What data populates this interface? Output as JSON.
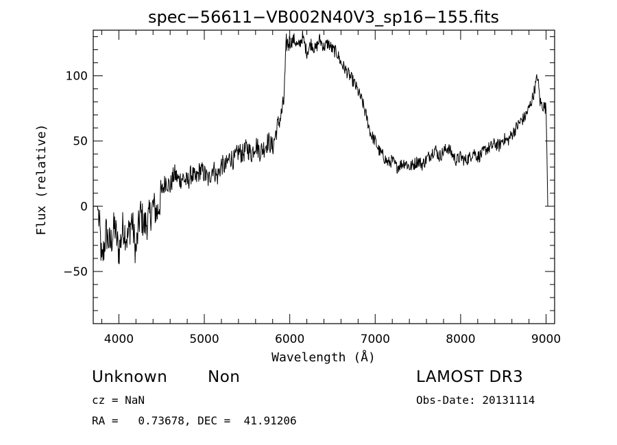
{
  "chart_data": {
    "type": "line",
    "title": "spec−56611−VB002N40V3_sp16−155.fits",
    "xlabel": "Wavelength (Å)",
    "ylabel": "Flux (relative)",
    "xlim": [
      3700,
      9100
    ],
    "ylim": [
      -90,
      135
    ],
    "x_ticks": [
      4000,
      5000,
      6000,
      7000,
      8000,
      9000
    ],
    "x_tick_labels": [
      "4000",
      "5000",
      "6000",
      "7000",
      "8000",
      "9000"
    ],
    "y_ticks": [
      -50,
      0,
      50,
      100
    ],
    "y_tick_labels": [
      "−50",
      "0",
      "50",
      "100"
    ],
    "grid": false,
    "series": [
      {
        "name": "",
        "color": "#000000",
        "x": [
          3700,
          3750,
          3780,
          3800,
          3850,
          3900,
          3950,
          4000,
          4050,
          4100,
          4150,
          4200,
          4250,
          4300,
          4350,
          4400,
          4450,
          4500,
          4550,
          4600,
          4650,
          4700,
          4750,
          4800,
          4850,
          4900,
          4950,
          5000,
          5050,
          5100,
          5150,
          5200,
          5250,
          5300,
          5350,
          5400,
          5450,
          5500,
          5550,
          5600,
          5650,
          5700,
          5750,
          5800,
          5850,
          5900,
          5930,
          5960,
          6000,
          6050,
          6100,
          6150,
          6200,
          6250,
          6300,
          6350,
          6400,
          6450,
          6500,
          6550,
          6600,
          6650,
          6700,
          6750,
          6800,
          6850,
          6900,
          6950,
          7000,
          7050,
          7100,
          7150,
          7200,
          7250,
          7300,
          7350,
          7400,
          7450,
          7500,
          7550,
          7600,
          7650,
          7700,
          7750,
          7800,
          7850,
          7900,
          7950,
          8000,
          8050,
          8100,
          8150,
          8200,
          8250,
          8300,
          8350,
          8400,
          8450,
          8500,
          8550,
          8600,
          8650,
          8700,
          8750,
          8800,
          8850,
          8900,
          8930,
          8950,
          9000,
          9010,
          9020
        ],
        "y": [
          0,
          0,
          -20,
          -45,
          -20,
          -30,
          -15,
          -35,
          -15,
          -25,
          -10,
          -35,
          -5,
          -15,
          -10,
          0,
          -5,
          10,
          20,
          15,
          25,
          20,
          22,
          18,
          25,
          20,
          28,
          25,
          20,
          30,
          22,
          32,
          30,
          38,
          35,
          42,
          40,
          45,
          40,
          48,
          42,
          45,
          50,
          45,
          60,
          70,
          80,
          125,
          125,
          128,
          122,
          130,
          118,
          125,
          120,
          128,
          122,
          125,
          120,
          118,
          110,
          105,
          100,
          95,
          88,
          80,
          68,
          55,
          50,
          42,
          38,
          33,
          35,
          30,
          32,
          34,
          30,
          32,
          35,
          32,
          36,
          40,
          44,
          38,
          42,
          45,
          40,
          35,
          38,
          35,
          37,
          42,
          38,
          40,
          44,
          45,
          48,
          46,
          52,
          50,
          55,
          60,
          65,
          68,
          75,
          85,
          100,
          80,
          78,
          75,
          40,
          0
        ]
      }
    ],
    "annotations": {
      "object_class": "Unknown",
      "object_subclass": "Non",
      "cz": "cz = NaN",
      "ra_dec": "RA =   0.73678, DEC =  41.91206",
      "survey": "LAMOST DR3",
      "obs_date": "Obs-Date: 20131114"
    }
  }
}
